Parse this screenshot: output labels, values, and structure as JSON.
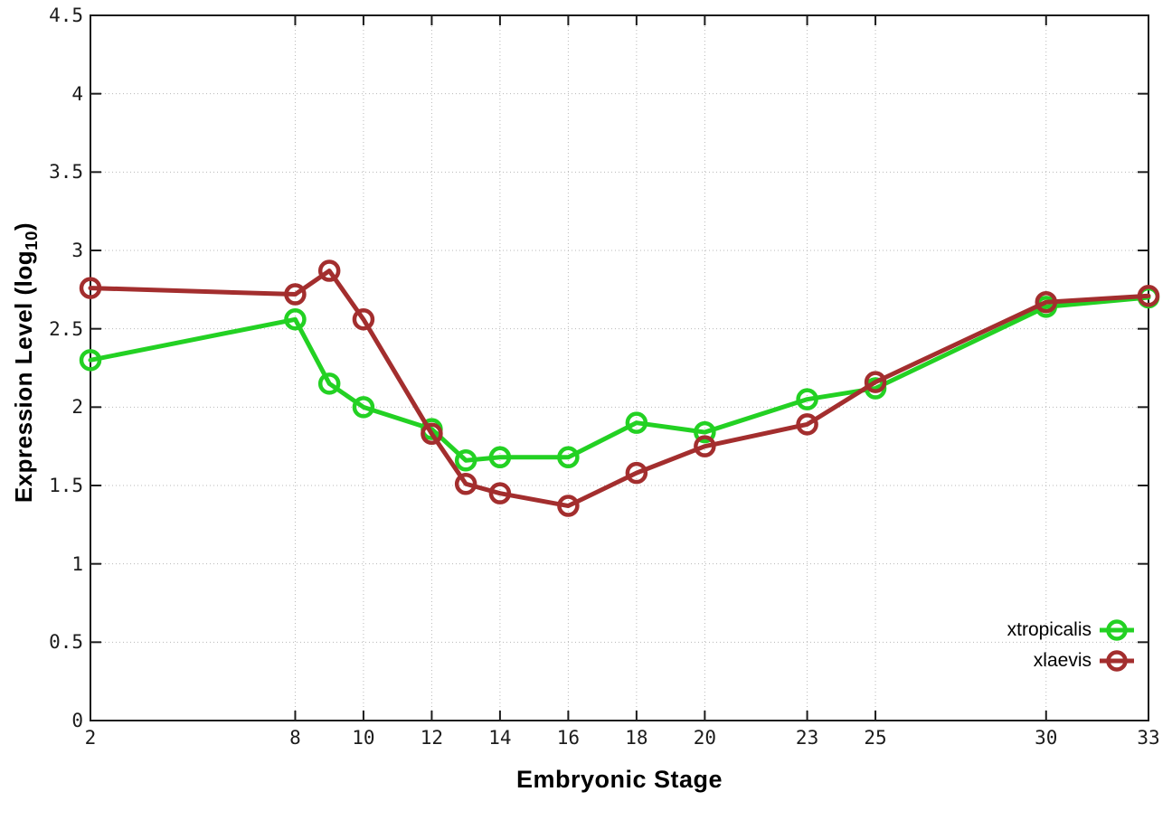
{
  "chart_data": {
    "type": "line",
    "title": "",
    "xlabel": "Embryonic Stage",
    "ylabel": "Expression Level (log10)",
    "ylabel_prefix": "Expression Level (log",
    "ylabel_sub": "10",
    "ylabel_suffix": ")",
    "x": [
      2,
      8,
      9,
      10,
      12,
      13,
      14,
      16,
      18,
      20,
      23,
      25,
      30,
      33
    ],
    "xticks": [
      2,
      8,
      10,
      12,
      14,
      16,
      18,
      20,
      23,
      25,
      30,
      33
    ],
    "xtick_labels": [
      "2",
      "8",
      "10",
      "12",
      "14",
      "16",
      "18",
      "20",
      "23",
      "25",
      "30",
      "33"
    ],
    "yticks": [
      0,
      0.5,
      1,
      1.5,
      2,
      2.5,
      3,
      3.5,
      4,
      4.5
    ],
    "ytick_labels": [
      "0",
      "0.5",
      "1",
      "1.5",
      "2",
      "2.5",
      "3",
      "3.5",
      "4",
      "4.5"
    ],
    "xlim": [
      2,
      33
    ],
    "ylim": [
      0,
      4.5
    ],
    "grid": true,
    "legend_position": "bottom-right",
    "series": [
      {
        "name": "xtropicalis",
        "color": "#23d123",
        "values": [
          2.3,
          2.56,
          2.15,
          2.0,
          1.86,
          1.66,
          1.68,
          1.68,
          1.9,
          1.84,
          2.05,
          2.12,
          2.64,
          2.7
        ]
      },
      {
        "name": "xlaevis",
        "color": "#a32e2e",
        "values": [
          2.76,
          2.72,
          2.87,
          2.56,
          1.83,
          1.51,
          1.45,
          1.37,
          1.58,
          1.75,
          1.89,
          2.16,
          2.67,
          2.71
        ]
      }
    ],
    "style": {
      "border_color": "#1c1c1c",
      "grid_color": "#b8b8b8",
      "background": "#ffffff",
      "line_width": 5,
      "marker": "open-circle",
      "marker_radius": 10,
      "marker_stroke": 4.5
    }
  }
}
